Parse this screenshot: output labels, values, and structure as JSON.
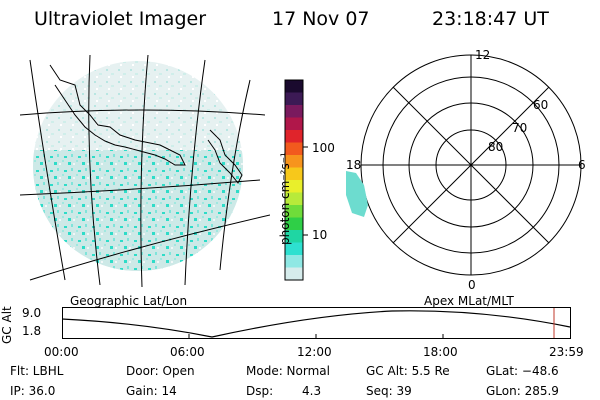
{
  "header": {
    "instrument": "Ultraviolet Imager",
    "date": "17 Nov 07",
    "time": "23:18:47 UT"
  },
  "colorbar": {
    "unit_label": "photon cm⁻²s⁻¹",
    "ticks": [
      "100",
      "10"
    ],
    "colors": [
      "#1a0a2e",
      "#3c1a55",
      "#7a1a5e",
      "#b0174a",
      "#e0242b",
      "#f25a1e",
      "#f7941d",
      "#f7c81b",
      "#e9ef2b",
      "#b8ea3a",
      "#6fdc3a",
      "#2fcf47",
      "#1fd6a3",
      "#2ee0d0",
      "#8fe8e4",
      "#d6ecec"
    ]
  },
  "polar_plot": {
    "mlt_labels": {
      "top": "12",
      "right": "6",
      "bottom": "0",
      "left": "18"
    },
    "lat_labels": [
      "80",
      "70",
      "60"
    ]
  },
  "timeline": {
    "left_label": "Geographic Lat/Lon",
    "right_label": "Apex MLat/MLT",
    "axis_label": "GC Alt",
    "y_ticks": [
      "9.0",
      "1.8"
    ],
    "time_ticks": [
      "00:00",
      "06:00",
      "12:00",
      "18:00",
      "23:59"
    ],
    "marker_color": "#c0392b"
  },
  "status": {
    "filter": "Flt: LBHL",
    "door": "Door: Open",
    "mode": "Mode: Normal",
    "gc_alt": "GC Alt: 5.5 Re",
    "glat": "GLat: −48.6",
    "ip": "IP: 36.0",
    "gain": "Gain: 14",
    "dsp_label": "Dsp:",
    "dsp_value": "4.3",
    "seq": "Seq: 39",
    "glon": "GLon: 285.9"
  }
}
